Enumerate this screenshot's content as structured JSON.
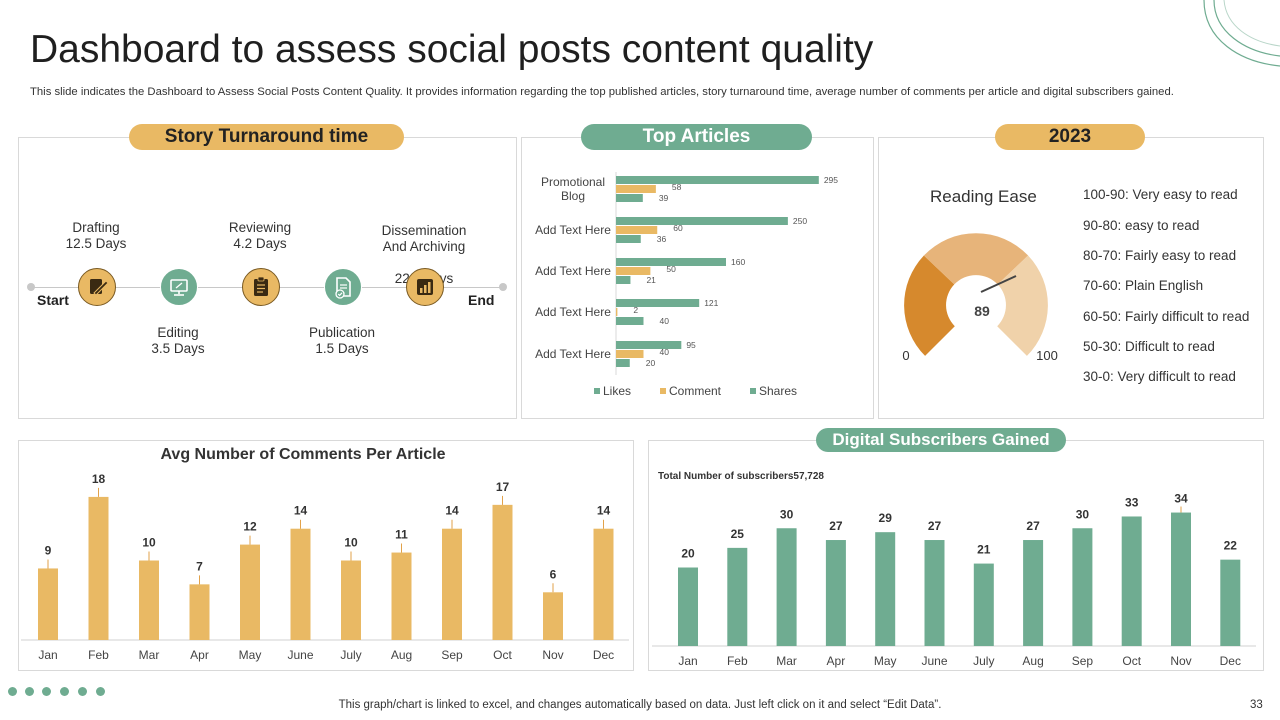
{
  "page": {
    "title": "Dashboard to assess social posts content quality",
    "subtitle": "This slide indicates the Dashboard to Assess Social Posts Content Quality. It provides information regarding the top published articles, story turnaround time, average number of comments per article and digital subscribers gained.",
    "footer": "This graph/chart is linked to excel,  and changes automatically based on data. Just left click on it and select “Edit Data”.",
    "page_number": "33"
  },
  "colors": {
    "gold": "#e9b964",
    "green": "#6fac91"
  },
  "turnaround": {
    "title": "Story Turnaround time",
    "start_label": "Start",
    "end_label": "End",
    "stages": [
      {
        "name": "Drafting",
        "days": "12.5 Days",
        "icon": "pencil-icon"
      },
      {
        "name": "Editing",
        "days": "3.5 Days",
        "icon": "monitor-icon"
      },
      {
        "name": "Reviewing",
        "days": "4.2 Days",
        "icon": "clipboard-icon"
      },
      {
        "name": "Publication",
        "days": "1.5 Days",
        "icon": "document-check-icon"
      },
      {
        "name": "Dissemination\nAnd Archiving",
        "days": "22.0 days",
        "icon": "chart-icon"
      }
    ]
  },
  "reading": {
    "year_title": "2023",
    "gauge_title": "Reading Ease",
    "value": "89",
    "min_label": "0",
    "max_label": "100",
    "scale": [
      "100-90:  Very easy to read",
      "90-80:  easy to read",
      "80-70:  Fairly easy to read",
      "70-60:  Plain English",
      "60-50:  Fairly difficult to read",
      "50-30:  Difficult to read",
      "30-0:  Very difficult to read"
    ]
  },
  "chart_data": [
    {
      "id": "top-articles",
      "type": "bar",
      "orientation": "horizontal",
      "title": "Top Articles",
      "categories": [
        "Promotional\nBlog",
        "Add Text Here",
        "Add Text Here",
        "Add Text Here",
        "Add Text Here"
      ],
      "series": [
        {
          "name": "Likes",
          "values": [
            295,
            250,
            160,
            121,
            95
          ],
          "color": "#6fac91"
        },
        {
          "name": "Comment",
          "values": [
            58,
            60,
            50,
            2,
            40
          ],
          "color": "#e9b964"
        },
        {
          "name": "Shares",
          "values": [
            39,
            36,
            21,
            40,
            20
          ],
          "color": "#6fac91"
        }
      ],
      "xlim": [
        0,
        320
      ],
      "legend": "bottom"
    },
    {
      "id": "avg-comments",
      "type": "bar",
      "title": "Avg Number of Comments Per Article",
      "categories": [
        "Jan",
        "Feb",
        "Mar",
        "Apr",
        "May",
        "June",
        "July",
        "Aug",
        "Sep",
        "Oct",
        "Nov",
        "Dec"
      ],
      "values": [
        9,
        18,
        10,
        7,
        12,
        14,
        10,
        11,
        14,
        17,
        6,
        14
      ],
      "color": "#e9b964",
      "ylim": [
        0,
        20
      ]
    },
    {
      "id": "subscribers",
      "type": "bar",
      "title": "Digital Subscribers Gained",
      "annotation": "Total Number of subscribers57,728",
      "categories": [
        "Jan",
        "Feb",
        "Mar",
        "Apr",
        "May",
        "June",
        "July",
        "Aug",
        "Sep",
        "Oct",
        "Nov",
        "Dec"
      ],
      "values": [
        20,
        25,
        30,
        27,
        29,
        27,
        21,
        27,
        30,
        33,
        34,
        22
      ],
      "color": "#6fac91",
      "ylim": [
        0,
        40
      ]
    }
  ]
}
